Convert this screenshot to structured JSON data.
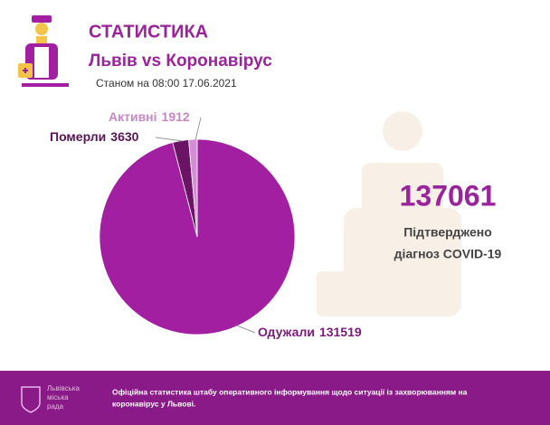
{
  "header": {
    "title": "СТАТИСТИКА",
    "subtitle": "Львів vs Коронавірус",
    "date": "Станом на 08:00 17.06.2021"
  },
  "chart_data": {
    "type": "pie",
    "categories": [
      "Одужали",
      "Померли",
      "Активні"
    ],
    "values": [
      131519,
      3630,
      1912
    ],
    "colors": [
      "#a21fa2",
      "#6b1466",
      "#d48fd4"
    ]
  },
  "summary": {
    "value": 137061,
    "lines": [
      "Підтверджено",
      "діагноз COVID-19"
    ]
  },
  "footer": {
    "logo": [
      "Львівська",
      "міська",
      "рада"
    ],
    "text": [
      "Офіційна статистика штабу оперативного інформування щодо ситуації із захворюванням на",
      "коронавірус у Львові."
    ]
  }
}
